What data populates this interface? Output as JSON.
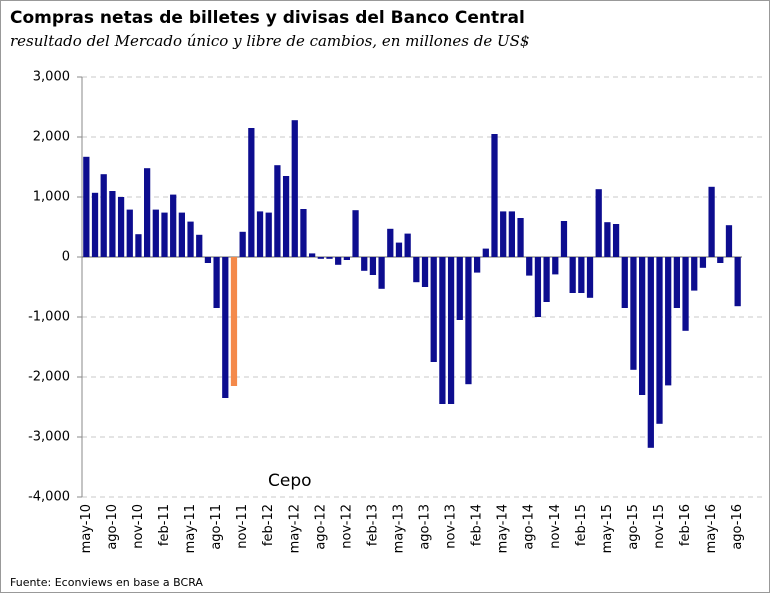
{
  "chart_data": {
    "type": "bar",
    "title": "Compras netas de billetes y divisas del Banco Central",
    "subtitle": "resultado del Mercado único y libre de cambios, en millones de US$",
    "annotation": "Cepo",
    "source": "Fuente:  Econviews en base a BCRA",
    "categories": [
      "may-10",
      null,
      null,
      "ago-10",
      null,
      null,
      "nov-10",
      null,
      null,
      "feb-11",
      null,
      null,
      "may-11",
      null,
      null,
      "ago-11",
      null,
      null,
      "nov-11",
      null,
      null,
      "feb-12",
      null,
      null,
      "may-12",
      null,
      null,
      "ago-12",
      null,
      null,
      "nov-12",
      null,
      null,
      "feb-13",
      null,
      null,
      "may-13",
      null,
      null,
      "ago-13",
      null,
      null,
      "nov-13",
      null,
      null,
      "feb-14",
      null,
      null,
      "may-14",
      null,
      null,
      "ago-14",
      null,
      null,
      "nov-14",
      null,
      null,
      "feb-15",
      null,
      null,
      "may-15",
      null,
      null,
      "ago-15",
      null,
      null,
      "nov-15",
      null,
      null,
      "feb-16",
      null,
      null,
      "may-16",
      null,
      null,
      "ago-16"
    ],
    "values": [
      1670,
      1070,
      1380,
      1100,
      1000,
      790,
      380,
      1480,
      790,
      740,
      1040,
      740,
      590,
      370,
      -100,
      -850,
      -2350,
      -2150,
      420,
      2150,
      760,
      740,
      1530,
      1350,
      2280,
      800,
      60,
      -30,
      -30,
      -130,
      -50,
      780,
      -230,
      -300,
      -530,
      470,
      240,
      390,
      -420,
      -500,
      -1750,
      -2450,
      -2450,
      -1050,
      -2120,
      -260,
      140,
      2050,
      760,
      760,
      650,
      -310,
      -1000,
      -750,
      -290,
      600,
      -600,
      -600,
      -680,
      1130,
      580,
      550,
      -850,
      -1880,
      -2300,
      -3180,
      -2780,
      -2140,
      -850,
      -1230,
      -560,
      -180,
      1170,
      -100,
      530,
      -820
    ],
    "colors": [
      "#0d0d8f",
      "#0d0d8f",
      "#0d0d8f",
      "#0d0d8f",
      "#0d0d8f",
      "#0d0d8f",
      "#0d0d8f",
      "#0d0d8f",
      "#0d0d8f",
      "#0d0d8f",
      "#0d0d8f",
      "#0d0d8f",
      "#0d0d8f",
      "#0d0d8f",
      "#0d0d8f",
      "#0d0d8f",
      "#0d0d8f",
      "#f4894a",
      "#0d0d8f",
      "#0d0d8f",
      "#0d0d8f",
      "#0d0d8f",
      "#0d0d8f",
      "#0d0d8f",
      "#0d0d8f",
      "#0d0d8f",
      "#0d0d8f",
      "#0d0d8f",
      "#0d0d8f",
      "#0d0d8f",
      "#0d0d8f",
      "#0d0d8f",
      "#0d0d8f",
      "#0d0d8f",
      "#0d0d8f",
      "#0d0d8f",
      "#0d0d8f",
      "#0d0d8f",
      "#0d0d8f",
      "#0d0d8f",
      "#0d0d8f",
      "#0d0d8f",
      "#0d0d8f",
      "#0d0d8f",
      "#0d0d8f",
      "#0d0d8f",
      "#0d0d8f",
      "#0d0d8f",
      "#0d0d8f",
      "#0d0d8f",
      "#0d0d8f",
      "#0d0d8f",
      "#0d0d8f",
      "#0d0d8f",
      "#0d0d8f",
      "#0d0d8f",
      "#0d0d8f",
      "#0d0d8f",
      "#0d0d8f",
      "#0d0d8f",
      "#0d0d8f",
      "#0d0d8f",
      "#0d0d8f",
      "#0d0d8f",
      "#0d0d8f",
      "#0d0d8f",
      "#0d0d8f",
      "#0d0d8f",
      "#0d0d8f",
      "#0d0d8f",
      "#0d0d8f",
      "#0d0d8f",
      "#0d0d8f",
      "#0d0d8f",
      "#0d0d8f",
      "#0d0d8f"
    ],
    "ylim": [
      -4000,
      3000
    ],
    "yticks": [
      {
        "value": -4000,
        "label": "-4,000"
      },
      {
        "value": -3000,
        "label": "-3,000"
      },
      {
        "value": -2000,
        "label": "-2,000"
      },
      {
        "value": -1000,
        "label": "-1,000"
      },
      0,
      {
        "value": 1000,
        "label": "1,000"
      },
      {
        "value": 2000,
        "label": "2,000"
      },
      {
        "value": 3000,
        "label": "3,000"
      }
    ],
    "grid": true
  }
}
